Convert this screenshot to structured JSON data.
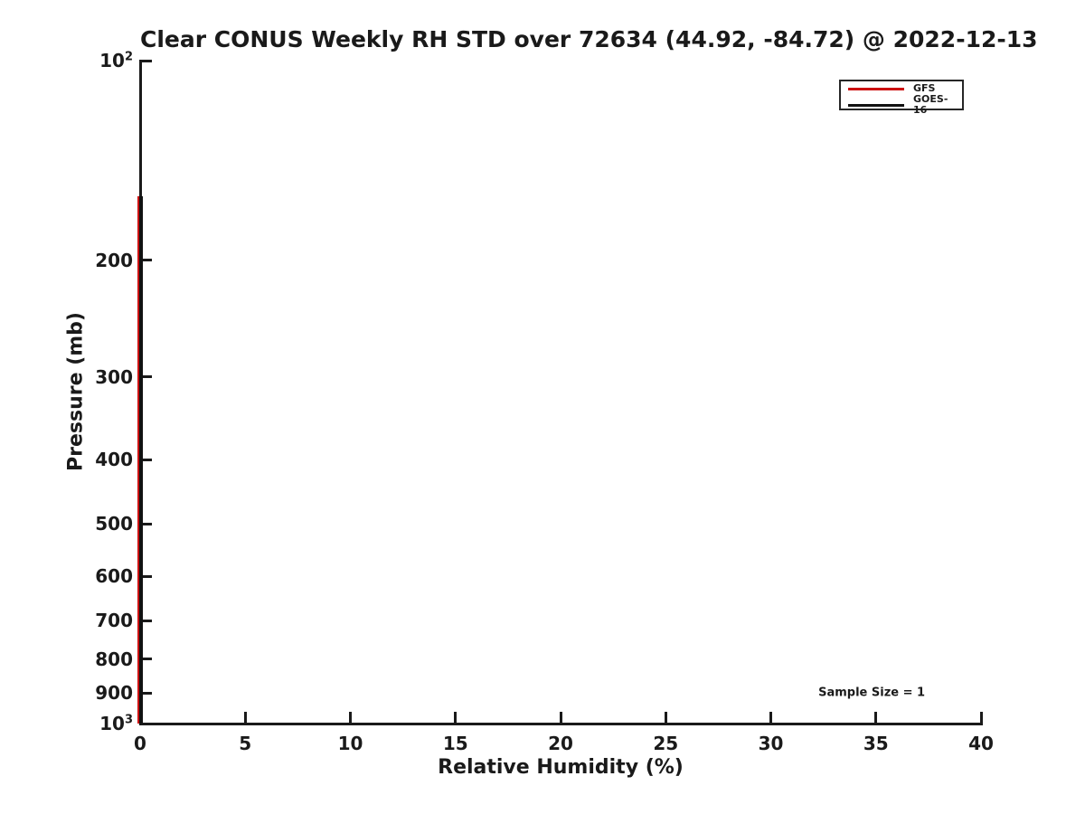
{
  "chart_data": {
    "type": "line",
    "title": "Clear CONUS Weekly RH STD over 72634 (44.92, -84.72) @ 2022-12-13",
    "xlabel": "Relative Humidity (%)",
    "ylabel": "Pressure (mb)",
    "grid": false,
    "x_axis": {
      "scale": "linear",
      "min": 0,
      "max": 40,
      "tick_values": [
        0,
        5,
        10,
        15,
        20,
        25,
        30,
        35,
        40
      ],
      "tick_labels": [
        "0",
        "5",
        "10",
        "15",
        "20",
        "25",
        "30",
        "35",
        "40"
      ]
    },
    "y_axis": {
      "scale": "log",
      "min": 100,
      "max": 1000,
      "inverted": true,
      "tick_values": [
        100,
        200,
        300,
        400,
        500,
        600,
        700,
        800,
        900,
        1000
      ],
      "tick_labels": [
        "10^2",
        "200",
        "300",
        "400",
        "500",
        "600",
        "700",
        "800",
        "900",
        "10^3"
      ]
    },
    "series": [
      {
        "name": "GFS",
        "color": "#cc1111",
        "line_width": 5,
        "rh_std_value": 0,
        "pressure_range_mb": [
          160,
          1000
        ]
      },
      {
        "name": "GOES-16",
        "color": "#111111",
        "line_width": 4,
        "rh_std_value": 0,
        "pressure_range_mb": [
          160,
          1000
        ]
      }
    ],
    "annotations": [
      {
        "text": "Sample Size = 1",
        "x": 34.8,
        "pressure_mb": 900
      }
    ],
    "legend": {
      "position": "top-right",
      "entries": [
        {
          "label": "GFS",
          "color": "#cc1111"
        },
        {
          "label": "GOES-16",
          "color": "#111111"
        }
      ]
    }
  }
}
